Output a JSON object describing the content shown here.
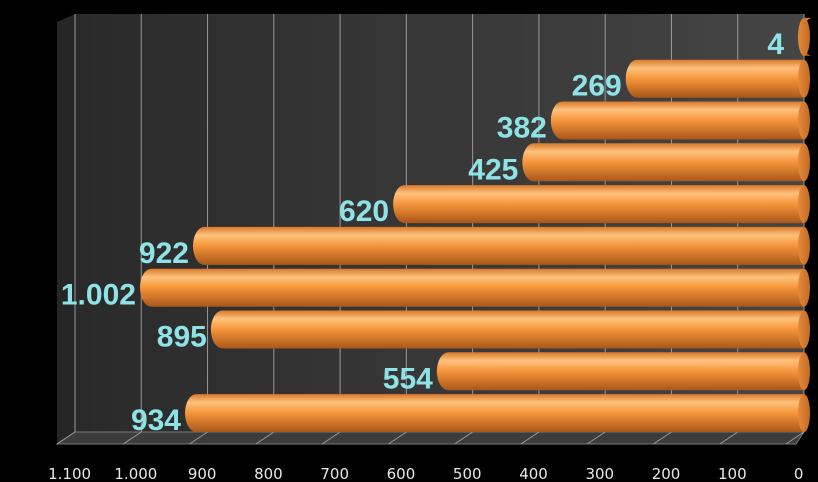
{
  "chart_data": {
    "type": "bar",
    "orientation": "horizontal",
    "x_axis": "reversed",
    "values": [
      934,
      554,
      895,
      1002,
      922,
      620,
      425,
      382,
      269,
      4
    ],
    "value_labels": [
      "934",
      "554",
      "895",
      "1.002",
      "922",
      "620",
      "425",
      "382",
      "269",
      "4"
    ],
    "xlim": [
      0,
      1100
    ],
    "xticks": [
      0,
      100,
      200,
      300,
      400,
      500,
      600,
      700,
      800,
      900,
      1000,
      1100
    ],
    "xtick_labels": [
      "0",
      "100",
      "200",
      "300",
      "400",
      "500",
      "600",
      "700",
      "800",
      "900",
      "1.000",
      "1.100"
    ],
    "grid": true,
    "title": "",
    "xlabel": "",
    "ylabel": "",
    "colors": {
      "bar": "#f5953a",
      "bar_light": "#ffc27d",
      "bar_dark": "#b9601a",
      "label": "#8fe3e6",
      "background": "#000000",
      "wall": "#363636",
      "grid": "#9a9a9a"
    }
  }
}
